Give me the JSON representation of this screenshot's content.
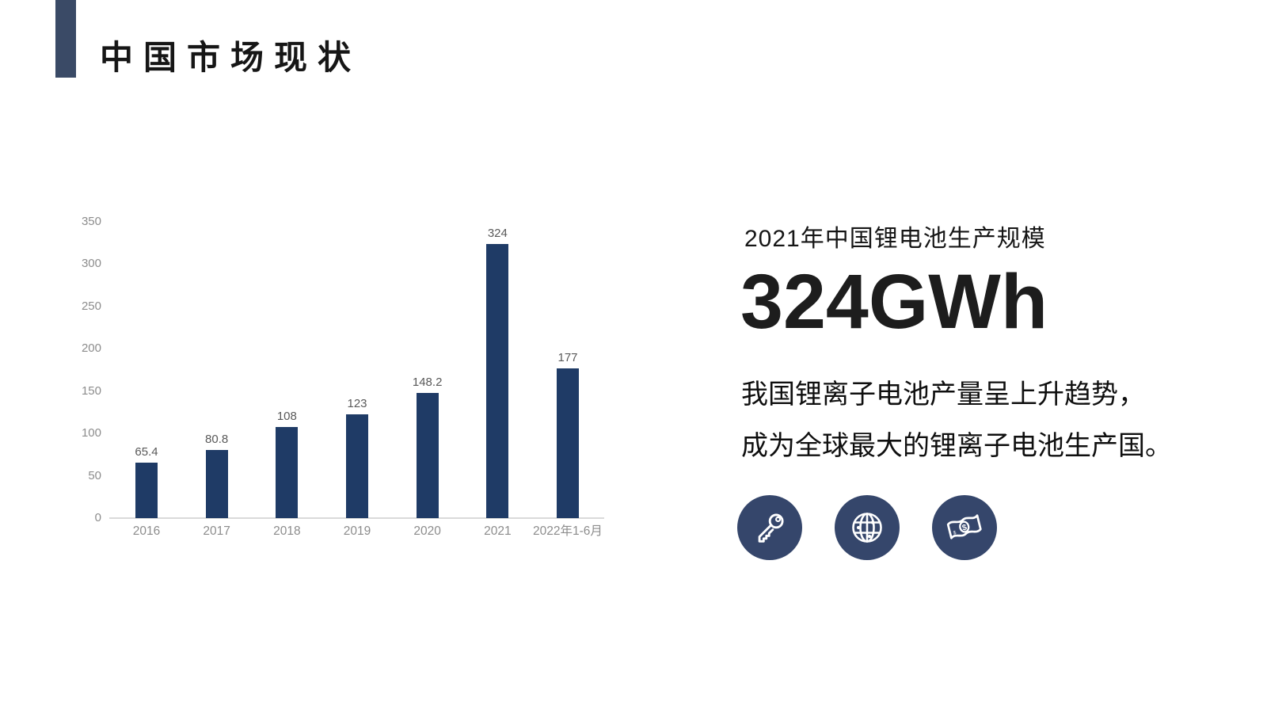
{
  "slide": {
    "title": "中国市场现状"
  },
  "right_panel": {
    "subtitle": "2021年中国锂电池生产规模",
    "headline_value": "324GWh",
    "body_line1": "我国锂离子电池产量呈上升趋势，",
    "body_line2": "成为全球最大的锂离子电池生产国。",
    "icons": [
      "key-icon",
      "globe-icon",
      "banknote-icon"
    ]
  },
  "colors": {
    "bar": "#1F3B66",
    "accent_bar": "#3A4A66",
    "icon_circle": "#35466B",
    "axis_line": "#DADADA",
    "axis_label": "#8C8C8C",
    "data_label": "#595959",
    "text_dark": "#161616"
  },
  "chart_data": {
    "type": "bar",
    "categories": [
      "2016",
      "2017",
      "2018",
      "2019",
      "2020",
      "2021",
      "2022年1-6月"
    ],
    "values": [
      65.4,
      80.8,
      108,
      123,
      148.2,
      324,
      177
    ],
    "title": "",
    "xlabel": "",
    "ylabel": "",
    "ylim": [
      0,
      350
    ],
    "yticks": [
      0,
      50,
      100,
      150,
      200,
      250,
      300,
      350
    ],
    "grid": false,
    "legend": "none",
    "bar_color": "#1F3B66",
    "data_labels": true
  }
}
